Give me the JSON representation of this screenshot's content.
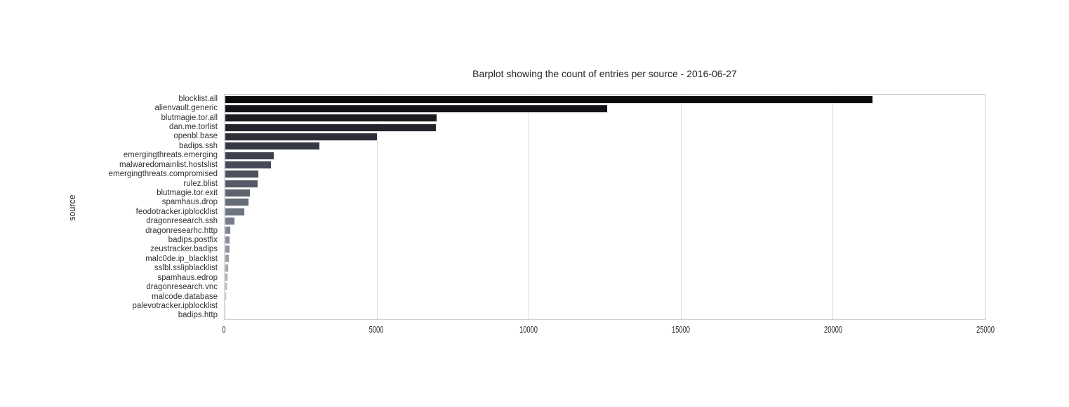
{
  "chart_data": {
    "type": "bar",
    "orientation": "horizontal",
    "title": "Barplot showing the count of entries per source - 2016-06-27",
    "xlabel": "",
    "ylabel": "source",
    "xlim": [
      0,
      25000
    ],
    "xticks": [
      0,
      5000,
      10000,
      15000,
      20000,
      25000
    ],
    "grid": "vertical-only",
    "legend": "none",
    "categories": [
      "blocklist.all",
      "alienvault.generic",
      "blutmagie.tor.all",
      "dan.me.torlist",
      "openbl.base",
      "badips.ssh",
      "emergingthreats.emerging",
      "malwaredomainlist.hostslist",
      "emergingthreats.compromised",
      "rulez.blist",
      "blutmagie.tor.exit",
      "spamhaus.drop",
      "feodotracker.ipblocklist",
      "dragonresearch.ssh",
      "dragonresearhc.http",
      "badips.postfix",
      "zeustracker.badips",
      "malc0de.ip_blacklist",
      "sslbl.sslipblacklist",
      "spamhaus.edrop",
      "dragonresearch.vnc",
      "malcode.database",
      "palevotracker.ipblocklist",
      "badips.http"
    ],
    "values": [
      21330,
      12600,
      6990,
      6960,
      5040,
      3140,
      1640,
      1540,
      1140,
      1100,
      850,
      810,
      660,
      350,
      215,
      195,
      175,
      155,
      130,
      110,
      90,
      70,
      40,
      15
    ],
    "bar_colors": [
      "#0a0a0c",
      "#131317",
      "#1b1c22",
      "#24252c",
      "#2d2e37",
      "#353742",
      "#3e404d",
      "#464956",
      "#4e515e",
      "#565a67",
      "#5e636f",
      "#666b78",
      "#6e7480",
      "#767d88",
      "#7e858f",
      "#868e97",
      "#8e979f",
      "#969fa6",
      "#9ea8ae",
      "#a5afb4",
      "#acb7ba",
      "#b4bec0",
      "#bbc6c6",
      "#c2cdcc"
    ],
    "colors": {
      "background": "#ffffff",
      "frame": "#cccccc",
      "gridline": "#d9d9d9",
      "bar_edge": "#f2f2f2",
      "title_text": "#262626",
      "tick_text": "#333333"
    }
  }
}
